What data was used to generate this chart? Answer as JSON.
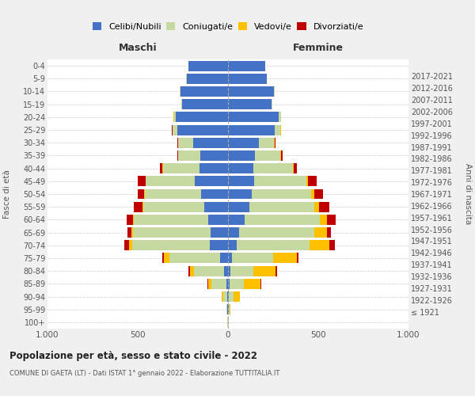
{
  "age_groups": [
    "100+",
    "95-99",
    "90-94",
    "85-89",
    "80-84",
    "75-79",
    "70-74",
    "65-69",
    "60-64",
    "55-59",
    "50-54",
    "45-49",
    "40-44",
    "35-39",
    "30-34",
    "25-29",
    "20-24",
    "15-19",
    "10-14",
    "5-9",
    "0-4"
  ],
  "birth_years": [
    "≤ 1921",
    "1922-1926",
    "1927-1931",
    "1932-1936",
    "1937-1941",
    "1942-1946",
    "1947-1951",
    "1952-1956",
    "1957-1961",
    "1962-1966",
    "1967-1971",
    "1972-1976",
    "1977-1981",
    "1982-1986",
    "1987-1991",
    "1992-1996",
    "1997-2001",
    "2002-2006",
    "2007-2011",
    "2012-2016",
    "2017-2021"
  ],
  "males": {
    "celibe": [
      2,
      3,
      5,
      10,
      20,
      45,
      100,
      95,
      110,
      130,
      150,
      185,
      160,
      155,
      195,
      280,
      290,
      255,
      265,
      230,
      220
    ],
    "coniugato": [
      1,
      4,
      20,
      80,
      170,
      280,
      430,
      430,
      410,
      340,
      310,
      270,
      200,
      120,
      80,
      25,
      10,
      3,
      2,
      1,
      0
    ],
    "vedovo": [
      0,
      2,
      10,
      20,
      20,
      30,
      20,
      10,
      5,
      5,
      5,
      3,
      2,
      2,
      1,
      2,
      1,
      0,
      0,
      0,
      0
    ],
    "divorziato": [
      0,
      0,
      0,
      5,
      8,
      10,
      25,
      20,
      35,
      45,
      35,
      40,
      15,
      5,
      5,
      3,
      2,
      0,
      0,
      0,
      0
    ]
  },
  "females": {
    "nubile": [
      2,
      3,
      5,
      8,
      12,
      20,
      50,
      60,
      90,
      120,
      130,
      145,
      140,
      150,
      170,
      260,
      280,
      240,
      255,
      215,
      205
    ],
    "coniugata": [
      1,
      5,
      25,
      80,
      130,
      230,
      400,
      420,
      420,
      360,
      330,
      290,
      220,
      140,
      85,
      30,
      12,
      4,
      2,
      1,
      0
    ],
    "vedova": [
      1,
      5,
      35,
      90,
      120,
      130,
      110,
      70,
      40,
      25,
      20,
      10,
      5,
      3,
      2,
      2,
      1,
      0,
      0,
      0,
      0
    ],
    "divorziata": [
      0,
      0,
      2,
      5,
      8,
      10,
      30,
      20,
      45,
      55,
      45,
      45,
      15,
      8,
      5,
      3,
      2,
      0,
      0,
      0,
      0
    ]
  },
  "colors": {
    "celibe": "#4472c4",
    "coniugato": "#c5d9a0",
    "vedovo": "#ffc000",
    "divorziato": "#c00000"
  },
  "title": "Popolazione per età, sesso e stato civile - 2022",
  "subtitle": "COMUNE DI GAETA (LT) - Dati ISTAT 1° gennaio 2022 - Elaborazione TUTTITALIA.IT",
  "xlabel_left": "Maschi",
  "xlabel_right": "Femmine",
  "ylabel_left": "Fasce di età",
  "ylabel_right": "Anni di nascita",
  "xlim": 1000,
  "legend_labels": [
    "Celibi/Nubili",
    "Coniugati/e",
    "Vedovi/e",
    "Divorziati/e"
  ],
  "bg_color": "#f0f0f0",
  "plot_bg_color": "#ffffff"
}
